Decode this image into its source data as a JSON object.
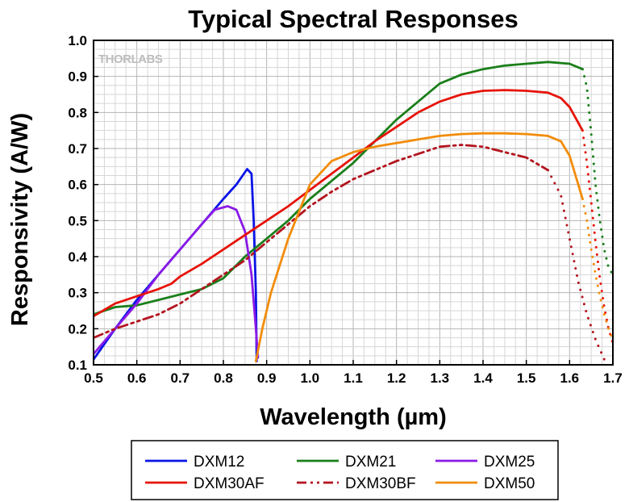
{
  "chart_data": {
    "type": "line",
    "title": "Typical Spectral Responses",
    "xlabel": "Wavelength (µm)",
    "ylabel": "Responsivity (A/W)",
    "xlim": [
      0.5,
      1.7
    ],
    "ylim": [
      0.1,
      1.0
    ],
    "xticks": [
      "0.5",
      "0.6",
      "0.7",
      "0.8",
      "0.9",
      "1.0",
      "1.1",
      "1.2",
      "1.3",
      "1.4",
      "1.5",
      "1.6",
      "1.7"
    ],
    "yticks": [
      "0.1",
      "0.2",
      "0.3",
      "0.4",
      "0.5",
      "0.6",
      "0.7",
      "0.8",
      "0.9",
      "1.0"
    ],
    "grid": true,
    "legend_position": "bottom",
    "logo_text": "THORLABS",
    "series": [
      {
        "name": "DXM12",
        "color": "#0a14e6",
        "style": "solid",
        "points": [
          [
            0.5,
            0.115
          ],
          [
            0.55,
            0.2
          ],
          [
            0.6,
            0.28
          ],
          [
            0.65,
            0.35
          ],
          [
            0.7,
            0.42
          ],
          [
            0.75,
            0.49
          ],
          [
            0.8,
            0.56
          ],
          [
            0.83,
            0.6
          ],
          [
            0.855,
            0.643
          ],
          [
            0.865,
            0.63
          ],
          [
            0.87,
            0.5
          ],
          [
            0.875,
            0.3
          ],
          [
            0.877,
            0.11
          ]
        ]
      },
      {
        "name": "DXM21",
        "color": "#1a7f1a",
        "style": "solid",
        "points": [
          [
            0.5,
            0.24
          ],
          [
            0.55,
            0.26
          ],
          [
            0.6,
            0.265
          ],
          [
            0.65,
            0.28
          ],
          [
            0.7,
            0.295
          ],
          [
            0.75,
            0.31
          ],
          [
            0.8,
            0.34
          ],
          [
            0.85,
            0.4
          ],
          [
            0.9,
            0.45
          ],
          [
            0.95,
            0.5
          ],
          [
            1.0,
            0.56
          ],
          [
            1.05,
            0.61
          ],
          [
            1.1,
            0.66
          ],
          [
            1.15,
            0.72
          ],
          [
            1.2,
            0.78
          ],
          [
            1.25,
            0.83
          ],
          [
            1.3,
            0.88
          ],
          [
            1.35,
            0.905
          ],
          [
            1.4,
            0.92
          ],
          [
            1.45,
            0.93
          ],
          [
            1.5,
            0.935
          ],
          [
            1.55,
            0.94
          ],
          [
            1.6,
            0.935
          ],
          [
            1.63,
            0.92
          ]
        ],
        "dotted_points": [
          [
            1.63,
            0.92
          ],
          [
            1.64,
            0.87
          ],
          [
            1.65,
            0.74
          ],
          [
            1.66,
            0.6
          ],
          [
            1.67,
            0.5
          ],
          [
            1.68,
            0.42
          ],
          [
            1.69,
            0.37
          ],
          [
            1.7,
            0.35
          ]
        ]
      },
      {
        "name": "DXM25",
        "color": "#8a1ae6",
        "style": "solid",
        "points": [
          [
            0.5,
            0.13
          ],
          [
            0.55,
            0.2
          ],
          [
            0.6,
            0.27
          ],
          [
            0.65,
            0.35
          ],
          [
            0.7,
            0.42
          ],
          [
            0.75,
            0.49
          ],
          [
            0.78,
            0.53
          ],
          [
            0.81,
            0.54
          ],
          [
            0.83,
            0.53
          ],
          [
            0.85,
            0.47
          ],
          [
            0.865,
            0.35
          ],
          [
            0.875,
            0.2
          ],
          [
            0.88,
            0.12
          ]
        ]
      },
      {
        "name": "DXM30AF",
        "color": "#e6140a",
        "style": "solid",
        "points": [
          [
            0.5,
            0.235
          ],
          [
            0.55,
            0.27
          ],
          [
            0.6,
            0.29
          ],
          [
            0.65,
            0.31
          ],
          [
            0.68,
            0.325
          ],
          [
            0.7,
            0.345
          ],
          [
            0.75,
            0.38
          ],
          [
            0.8,
            0.42
          ],
          [
            0.85,
            0.46
          ],
          [
            0.9,
            0.5
          ],
          [
            0.95,
            0.54
          ],
          [
            1.0,
            0.585
          ],
          [
            1.05,
            0.63
          ],
          [
            1.1,
            0.675
          ],
          [
            1.15,
            0.72
          ],
          [
            1.2,
            0.76
          ],
          [
            1.25,
            0.8
          ],
          [
            1.3,
            0.83
          ],
          [
            1.35,
            0.85
          ],
          [
            1.4,
            0.86
          ],
          [
            1.45,
            0.862
          ],
          [
            1.5,
            0.86
          ],
          [
            1.55,
            0.855
          ],
          [
            1.58,
            0.84
          ],
          [
            1.6,
            0.815
          ],
          [
            1.63,
            0.75
          ]
        ],
        "dotted_points": [
          [
            1.63,
            0.75
          ],
          [
            1.64,
            0.66
          ],
          [
            1.65,
            0.55
          ],
          [
            1.66,
            0.44
          ],
          [
            1.67,
            0.34
          ],
          [
            1.68,
            0.26
          ],
          [
            1.69,
            0.2
          ],
          [
            1.7,
            0.16
          ]
        ]
      },
      {
        "name": "DXM30BF",
        "color": "#b3141e",
        "style": "dashdot",
        "points": [
          [
            0.5,
            0.175
          ],
          [
            0.55,
            0.2
          ],
          [
            0.6,
            0.22
          ],
          [
            0.65,
            0.24
          ],
          [
            0.7,
            0.27
          ],
          [
            0.75,
            0.31
          ],
          [
            0.8,
            0.35
          ],
          [
            0.85,
            0.39
          ],
          [
            0.9,
            0.44
          ],
          [
            0.95,
            0.49
          ],
          [
            1.0,
            0.54
          ],
          [
            1.05,
            0.58
          ],
          [
            1.1,
            0.615
          ],
          [
            1.15,
            0.64
          ],
          [
            1.2,
            0.665
          ],
          [
            1.25,
            0.685
          ],
          [
            1.3,
            0.705
          ],
          [
            1.35,
            0.71
          ],
          [
            1.4,
            0.705
          ],
          [
            1.45,
            0.69
          ],
          [
            1.5,
            0.675
          ],
          [
            1.55,
            0.64
          ]
        ],
        "dotted_points": [
          [
            1.55,
            0.64
          ],
          [
            1.58,
            0.57
          ],
          [
            1.6,
            0.45
          ],
          [
            1.62,
            0.33
          ],
          [
            1.64,
            0.24
          ],
          [
            1.66,
            0.17
          ],
          [
            1.68,
            0.115
          ]
        ]
      },
      {
        "name": "DXM50",
        "color": "#f28c0a",
        "style": "solid",
        "points": [
          [
            0.875,
            0.11
          ],
          [
            0.89,
            0.2
          ],
          [
            0.91,
            0.3
          ],
          [
            0.95,
            0.45
          ],
          [
            1.0,
            0.6
          ],
          [
            1.05,
            0.665
          ],
          [
            1.1,
            0.69
          ],
          [
            1.15,
            0.705
          ],
          [
            1.2,
            0.715
          ],
          [
            1.25,
            0.725
          ],
          [
            1.3,
            0.735
          ],
          [
            1.35,
            0.74
          ],
          [
            1.4,
            0.742
          ],
          [
            1.45,
            0.742
          ],
          [
            1.5,
            0.74
          ],
          [
            1.55,
            0.735
          ],
          [
            1.58,
            0.72
          ],
          [
            1.6,
            0.68
          ],
          [
            1.62,
            0.6
          ],
          [
            1.63,
            0.56
          ]
        ],
        "dotted_points": [
          [
            1.63,
            0.56
          ],
          [
            1.64,
            0.5
          ],
          [
            1.65,
            0.42
          ],
          [
            1.66,
            0.35
          ],
          [
            1.67,
            0.29
          ],
          [
            1.68,
            0.24
          ],
          [
            1.69,
            0.2
          ],
          [
            1.7,
            0.17
          ]
        ]
      }
    ]
  }
}
